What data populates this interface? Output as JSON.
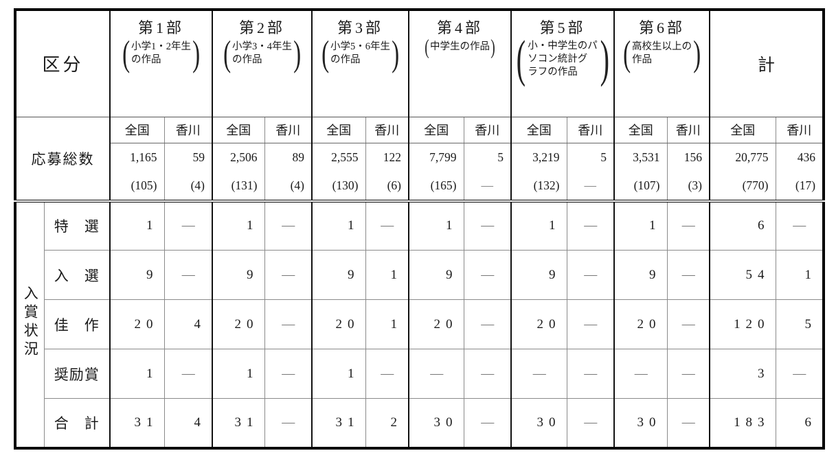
{
  "table": {
    "corner_label": "区分",
    "total_label": "計",
    "applications_label": "応募総数",
    "award_section_label": "入賞状況",
    "region_headers": [
      "全国",
      "香川"
    ],
    "parts": [
      {
        "title": "第1部",
        "desc_lines": [
          "小学1・2年生",
          "の作品"
        ]
      },
      {
        "title": "第2部",
        "desc_lines": [
          "小学3・4年生",
          "の作品"
        ]
      },
      {
        "title": "第3部",
        "desc_lines": [
          "小学5・6年生",
          "の作品"
        ]
      },
      {
        "title": "第4部",
        "desc_lines": [
          "中学生の作品"
        ]
      },
      {
        "title": "第5部",
        "desc_lines": [
          "小・中学生のパ",
          "ソコン統計グ",
          "ラフの作品"
        ]
      },
      {
        "title": "第6部",
        "desc_lines": [
          "高校生以上の",
          "作品"
        ]
      }
    ],
    "applications_row": {
      "values": [
        "1,165",
        "59",
        "2,506",
        "89",
        "2,555",
        "122",
        "7,799",
        "5",
        "3,219",
        "5",
        "3,531",
        "156",
        "20,775",
        "436"
      ],
      "sub_values": [
        "(105)",
        "(4)",
        "(131)",
        "(4)",
        "(130)",
        "(6)",
        "(165)",
        "—",
        "(132)",
        "—",
        "(107)",
        "(3)",
        "(770)",
        "(17)"
      ]
    },
    "award_rows": [
      {
        "label": "特　選",
        "values": [
          "1",
          "—",
          "1",
          "—",
          "1",
          "—",
          "1",
          "—",
          "1",
          "—",
          "1",
          "—",
          "6",
          "—"
        ]
      },
      {
        "label": "入　選",
        "values": [
          "9",
          "—",
          "9",
          "—",
          "9",
          "1",
          "9",
          "—",
          "9",
          "—",
          "9",
          "—",
          "54",
          "1"
        ]
      },
      {
        "label": "佳　作",
        "values": [
          "20",
          "4",
          "20",
          "—",
          "20",
          "1",
          "20",
          "—",
          "20",
          "—",
          "20",
          "—",
          "120",
          "5"
        ]
      },
      {
        "label": "奨励賞",
        "values": [
          "1",
          "—",
          "1",
          "—",
          "1",
          "—",
          "—",
          "—",
          "—",
          "—",
          "—",
          "—",
          "3",
          "—"
        ]
      },
      {
        "label": "合　計",
        "values": [
          "31",
          "4",
          "31",
          "—",
          "31",
          "2",
          "30",
          "—",
          "30",
          "—",
          "30",
          "—",
          "183",
          "6"
        ]
      }
    ]
  }
}
